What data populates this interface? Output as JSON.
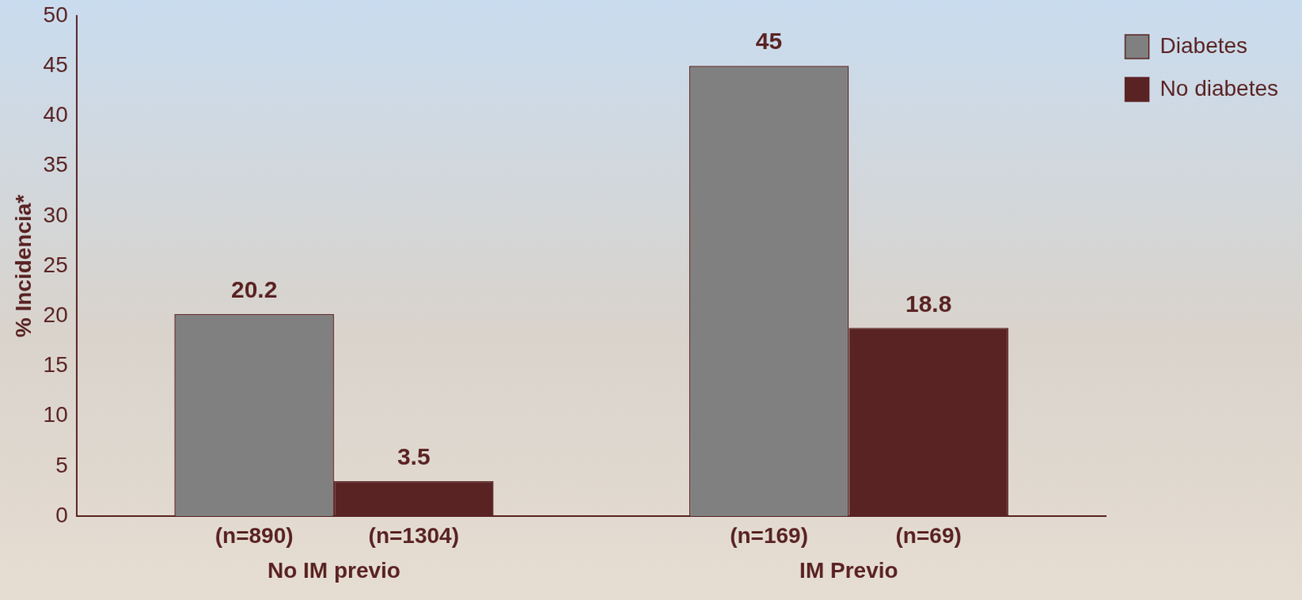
{
  "chart_data": {
    "type": "bar",
    "y_label": "% Incidencia*",
    "categories": [
      "No IM previo",
      "IM Previo"
    ],
    "series": [
      {
        "name": "Diabetes",
        "color": "#808080",
        "values": [
          20.2,
          45
        ],
        "n_labels": [
          "(n=890)",
          "(n=169)"
        ]
      },
      {
        "name": "No diabetes",
        "color": "#5a2323",
        "values": [
          3.5,
          18.8
        ],
        "n_labels": [
          "(n=1304)",
          "(n=69)"
        ]
      }
    ],
    "ylim": [
      0,
      50
    ],
    "yticks": [
      0,
      5,
      10,
      15,
      20,
      25,
      30,
      35,
      40,
      45,
      50
    ],
    "grid": false,
    "legend": "upper right",
    "data_labels": true
  }
}
